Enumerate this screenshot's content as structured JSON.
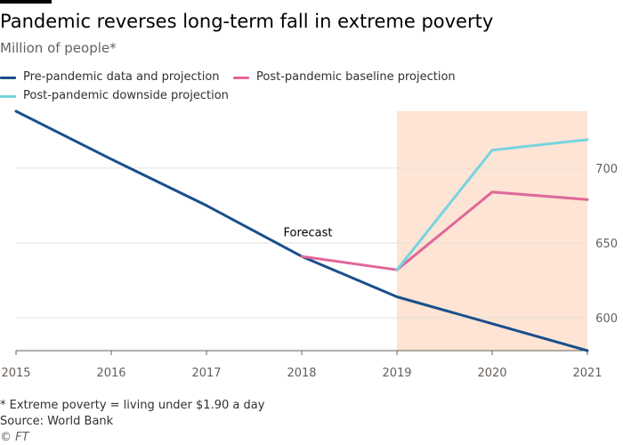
{
  "header": {
    "title": "Pandemic reverses long-term fall in extreme poverty",
    "subtitle": "Million of people*"
  },
  "legend": [
    {
      "label": "Pre-pandemic data and projection",
      "color": "#1a4f8b"
    },
    {
      "label": "Post-pandemic baseline projection",
      "color": "#e0679a"
    },
    {
      "label": "Post-pandemic downside projection",
      "color": "#76d4de"
    }
  ],
  "footer": {
    "note": "* Extreme poverty = living under $1.90 a day",
    "source": "Source: World Bank",
    "credit": "© FT"
  },
  "chart_data": {
    "type": "line",
    "x": [
      2015,
      2016,
      2017,
      2018,
      2019,
      2020,
      2021
    ],
    "xlim": [
      2015,
      2021
    ],
    "ylim": [
      578,
      738
    ],
    "yticks": [
      600,
      650,
      700
    ],
    "xticks": [
      2015,
      2016,
      2017,
      2018,
      2019,
      2020,
      2021
    ],
    "y_axis_position": "right",
    "grid": "horizontal",
    "series": [
      {
        "name": "Pre-pandemic data and projection",
        "color": "#1a4f8b",
        "points": [
          [
            2015,
            738
          ],
          [
            2016,
            706
          ],
          [
            2017,
            675
          ],
          [
            2018,
            641
          ],
          [
            2019,
            614
          ],
          [
            2020,
            596
          ],
          [
            2021,
            578
          ]
        ]
      },
      {
        "name": "Post-pandemic baseline projection",
        "color": "#e0679a",
        "points": [
          [
            2018,
            641
          ],
          [
            2019,
            632
          ],
          [
            2020,
            684
          ],
          [
            2021,
            679
          ]
        ]
      },
      {
        "name": "Post-pandemic downside projection",
        "color": "#76d4de",
        "points": [
          [
            2019,
            632
          ],
          [
            2020,
            712
          ],
          [
            2021,
            719
          ]
        ]
      }
    ],
    "shaded_region": {
      "from": 2019,
      "to": 2021,
      "color": "#fde4d4"
    },
    "annotations": [
      {
        "text": "Forecast",
        "x": 2018,
        "y": 652
      }
    ]
  }
}
